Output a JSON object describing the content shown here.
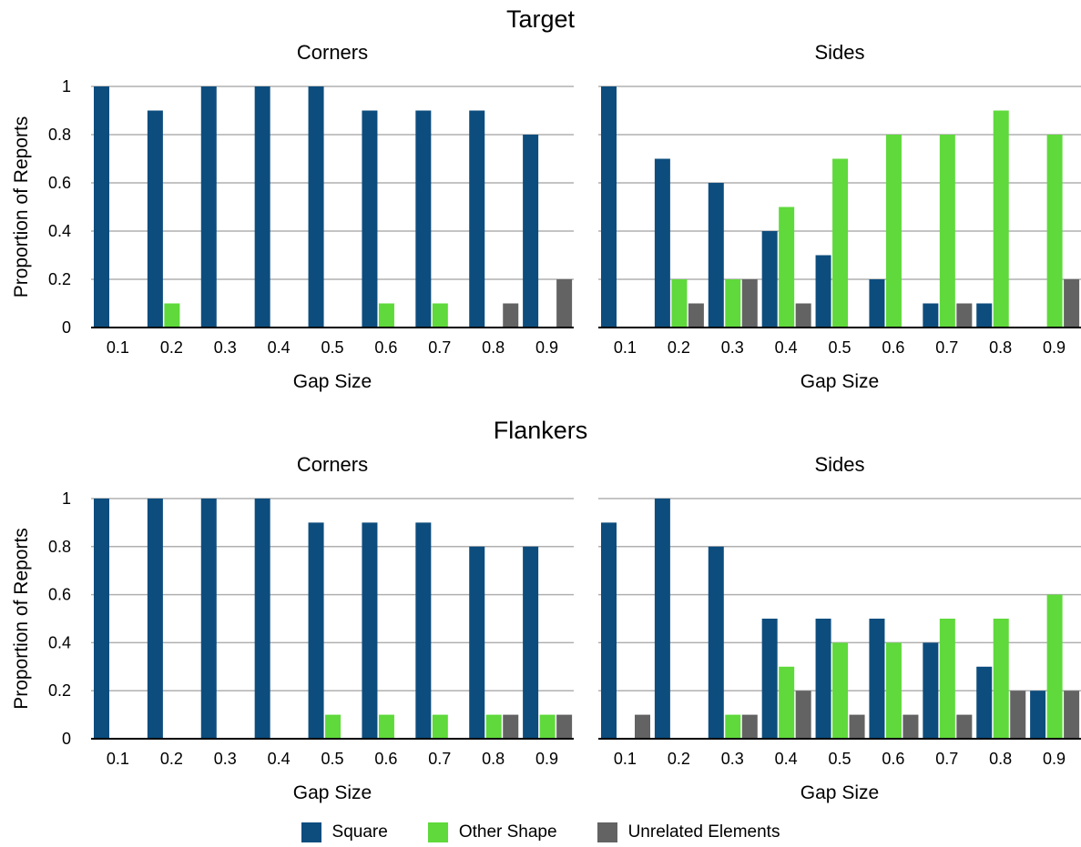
{
  "section_titles": {
    "top": "Target",
    "bottom": "Flankers"
  },
  "colors": {
    "square": "#0d4d7e",
    "other_shape": "#5fd93b",
    "unrelated_elements": "#636363",
    "grid": "#b0b0b0",
    "axis": "#000000"
  },
  "legend": [
    {
      "label": "Square",
      "color": "#0d4d7e"
    },
    {
      "label": "Other Shape",
      "color": "#5fd93b"
    },
    {
      "label": "Unrelated Elements",
      "color": "#636363"
    }
  ],
  "chart_data": [
    {
      "type": "bar",
      "section": "Target",
      "title": "Corners",
      "xlabel": "Gap Size",
      "ylabel": "Proportion of Reports",
      "ylim": [
        0,
        1
      ],
      "yticks": [
        "0",
        "0.2",
        "0.4",
        "0.6",
        "0.8",
        "1"
      ],
      "categories": [
        "0.1",
        "0.2",
        "0.3",
        "0.4",
        "0.5",
        "0.6",
        "0.7",
        "0.8",
        "0.9"
      ],
      "series": [
        {
          "name": "Square",
          "values": [
            1,
            0.9,
            1,
            1,
            1,
            0.9,
            0.9,
            0.9,
            0.8
          ]
        },
        {
          "name": "Other Shape",
          "values": [
            0,
            0.1,
            0,
            0,
            0,
            0.1,
            0.1,
            0,
            0
          ]
        },
        {
          "name": "Unrelated Elements",
          "values": [
            0,
            0,
            0,
            0,
            0,
            0,
            0,
            0.1,
            0.2
          ]
        }
      ]
    },
    {
      "type": "bar",
      "section": "Target",
      "title": "Sides",
      "xlabel": "Gap Size",
      "ylabel": "",
      "ylim": [
        0,
        1
      ],
      "yticks": [],
      "categories": [
        "0.1",
        "0.2",
        "0.3",
        "0.4",
        "0.5",
        "0.6",
        "0.7",
        "0.8",
        "0.9"
      ],
      "series": [
        {
          "name": "Square",
          "values": [
            1,
            0.7,
            0.6,
            0.4,
            0.3,
            0.2,
            0.1,
            0.1,
            0
          ]
        },
        {
          "name": "Other Shape",
          "values": [
            0,
            0.2,
            0.2,
            0.5,
            0.7,
            0.8,
            0.8,
            0.9,
            0.8
          ]
        },
        {
          "name": "Unrelated Elements",
          "values": [
            0,
            0.1,
            0.2,
            0.1,
            0,
            0,
            0.1,
            0,
            0.2
          ]
        }
      ]
    },
    {
      "type": "bar",
      "section": "Flankers",
      "title": "Corners",
      "xlabel": "Gap Size",
      "ylabel": "Proportion of Reports",
      "ylim": [
        0,
        1
      ],
      "yticks": [
        "0",
        "0.2",
        "0.4",
        "0.6",
        "0.8",
        "1"
      ],
      "categories": [
        "0.1",
        "0.2",
        "0.3",
        "0.4",
        "0.5",
        "0.6",
        "0.7",
        "0.8",
        "0.9"
      ],
      "series": [
        {
          "name": "Square",
          "values": [
            1,
            1,
            1,
            1,
            0.9,
            0.9,
            0.9,
            0.8,
            0.8
          ]
        },
        {
          "name": "Other Shape",
          "values": [
            0,
            0,
            0,
            0,
            0.1,
            0.1,
            0.1,
            0.1,
            0.1
          ]
        },
        {
          "name": "Unrelated Elements",
          "values": [
            0,
            0,
            0,
            0,
            0,
            0,
            0,
            0.1,
            0.1
          ]
        }
      ]
    },
    {
      "type": "bar",
      "section": "Flankers",
      "title": "Sides",
      "xlabel": "Gap Size",
      "ylabel": "",
      "ylim": [
        0,
        1
      ],
      "yticks": [],
      "categories": [
        "0.1",
        "0.2",
        "0.3",
        "0.4",
        "0.5",
        "0.6",
        "0.7",
        "0.8",
        "0.9"
      ],
      "series": [
        {
          "name": "Square",
          "values": [
            0.9,
            1,
            0.8,
            0.5,
            0.5,
            0.5,
            0.4,
            0.3,
            0.2
          ]
        },
        {
          "name": "Other Shape",
          "values": [
            0,
            0,
            0.1,
            0.3,
            0.4,
            0.4,
            0.5,
            0.5,
            0.6
          ]
        },
        {
          "name": "Unrelated Elements",
          "values": [
            0.1,
            0,
            0.1,
            0.2,
            0.1,
            0.1,
            0.1,
            0.2,
            0.2
          ]
        }
      ]
    }
  ]
}
